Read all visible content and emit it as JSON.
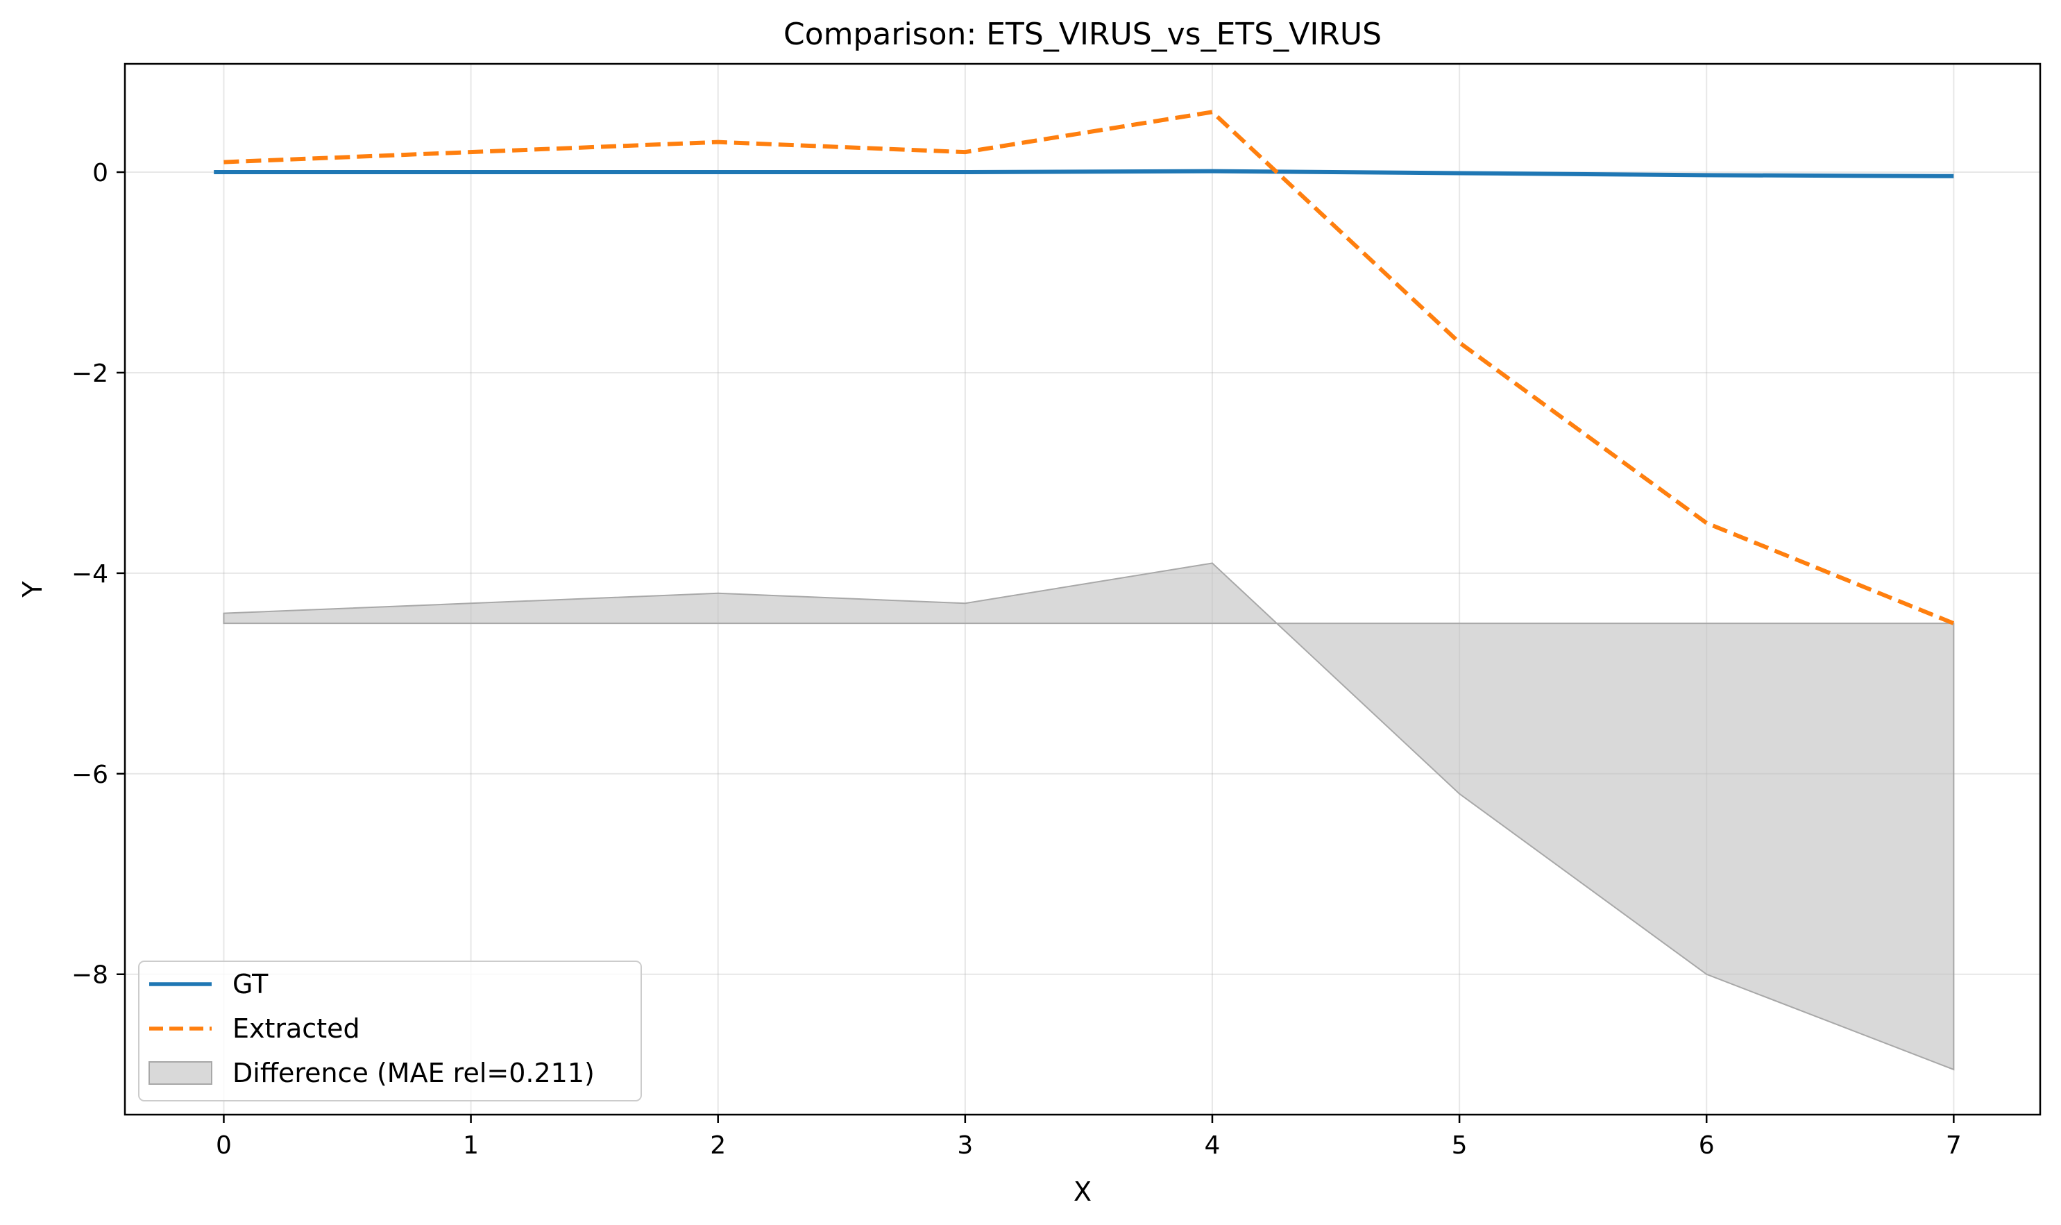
{
  "chart_data": {
    "type": "line",
    "title": "Comparison: ETS_VIRUS_vs_ETS_VIRUS",
    "xlabel": "X",
    "ylabel": "Y",
    "xlim": [
      -0.4,
      7.35
    ],
    "ylim": [
      -9.4,
      1.08
    ],
    "x_ticks": [
      0,
      1,
      2,
      3,
      4,
      5,
      6,
      7
    ],
    "x_tick_labels": [
      "0",
      "1",
      "2",
      "3",
      "4",
      "5",
      "6",
      "7"
    ],
    "y_ticks": [
      0,
      -2,
      -4,
      -6,
      -8
    ],
    "y_tick_labels": [
      "0",
      "−2",
      "−4",
      "−6",
      "−8"
    ],
    "grid": true,
    "legend_position": "lower-left",
    "series": [
      {
        "name": "GT",
        "color": "#1f77b4",
        "style": "solid",
        "x": [
          -0.04,
          2,
          3,
          4,
          5,
          6,
          7
        ],
        "y": [
          0.0,
          0.0,
          0.0,
          0.01,
          -0.01,
          -0.03,
          -0.04
        ]
      },
      {
        "name": "Extracted",
        "color": "#ff7f0e",
        "style": "dashed",
        "x": [
          0,
          2,
          3,
          4,
          5,
          6,
          7
        ],
        "y": [
          0.1,
          0.3,
          0.2,
          0.6,
          -1.7,
          -3.5,
          -4.5
        ]
      }
    ],
    "difference": {
      "name": "Difference (MAE rel=0.211)",
      "color": "#bfbfbf",
      "baseline": -4.5,
      "x": [
        0,
        2,
        3,
        4,
        5,
        6,
        7
      ],
      "y": [
        -4.4,
        -4.2,
        -4.3,
        -3.9,
        -6.2,
        -8.0,
        -8.95
      ]
    }
  }
}
